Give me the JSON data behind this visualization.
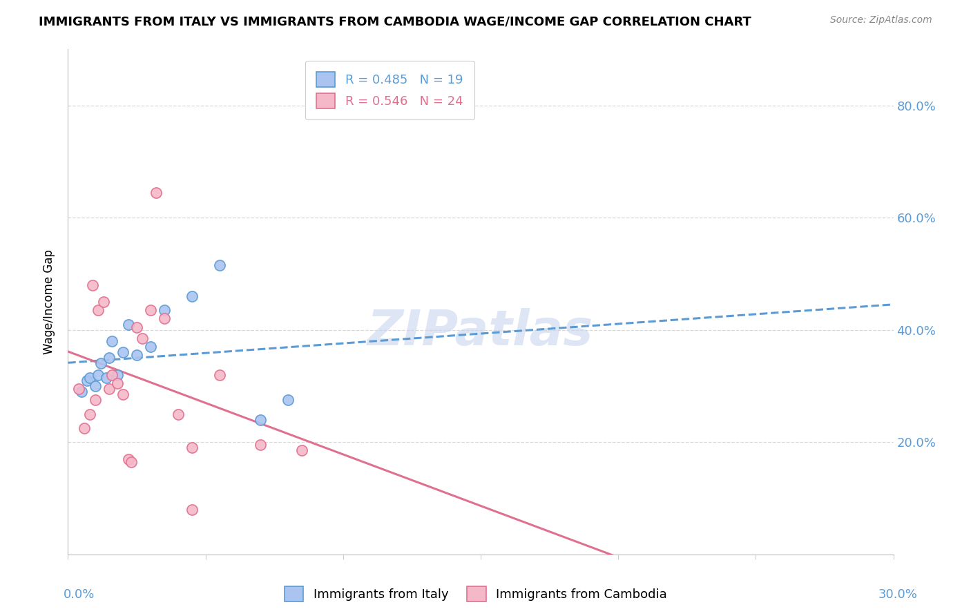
{
  "title": "IMMIGRANTS FROM ITALY VS IMMIGRANTS FROM CAMBODIA WAGE/INCOME GAP CORRELATION CHART",
  "source": "Source: ZipAtlas.com",
  "ylabel": "Wage/Income Gap",
  "watermark": "ZIPatlas",
  "legend_italy_r": "0.485",
  "legend_italy_n": "19",
  "legend_cambodia_r": "0.546",
  "legend_cambodia_n": "24",
  "italy_fill_color": "#aac4f0",
  "italy_edge_color": "#5b9bd5",
  "cambodia_fill_color": "#f5b8c8",
  "cambodia_edge_color": "#e07090",
  "italy_line_color": "#5b9bd5",
  "cambodia_line_color": "#e07090",
  "italy_x": [
    0.5,
    0.7,
    0.8,
    1.0,
    1.1,
    1.2,
    1.4,
    1.5,
    1.6,
    1.8,
    2.0,
    2.2,
    2.5,
    3.0,
    3.5,
    4.5,
    5.5,
    7.0,
    8.0
  ],
  "italy_y": [
    29.0,
    31.0,
    31.5,
    30.0,
    32.0,
    34.0,
    31.5,
    35.0,
    38.0,
    32.0,
    36.0,
    41.0,
    35.5,
    37.0,
    43.5,
    46.0,
    51.5,
    24.0,
    27.5
  ],
  "cambodia_x": [
    0.4,
    0.6,
    0.8,
    1.0,
    1.1,
    1.3,
    1.5,
    1.6,
    1.8,
    2.0,
    2.2,
    2.3,
    2.5,
    2.7,
    3.0,
    3.5,
    4.0,
    4.5,
    5.5,
    7.0,
    8.5,
    4.5,
    3.2,
    0.9
  ],
  "cambodia_y": [
    29.5,
    22.5,
    25.0,
    27.5,
    43.5,
    45.0,
    29.5,
    32.0,
    30.5,
    28.5,
    17.0,
    16.5,
    40.5,
    38.5,
    43.5,
    42.0,
    25.0,
    8.0,
    32.0,
    19.5,
    18.5,
    19.0,
    64.5,
    48.0
  ],
  "xlim": [
    0.0,
    30.0
  ],
  "ylim": [
    0.0,
    90.0
  ],
  "yticks": [
    20.0,
    40.0,
    60.0,
    80.0
  ],
  "xtick_positions": [
    0,
    5,
    10,
    15,
    20,
    25,
    30
  ],
  "title_fontsize": 13,
  "source_fontsize": 10,
  "tick_fontsize": 13,
  "legend_fontsize": 13,
  "ylabel_fontsize": 12,
  "watermark_fontsize": 52,
  "watermark_color": "#c8d4ee",
  "background_color": "#ffffff",
  "grid_color": "#d8d8d8"
}
